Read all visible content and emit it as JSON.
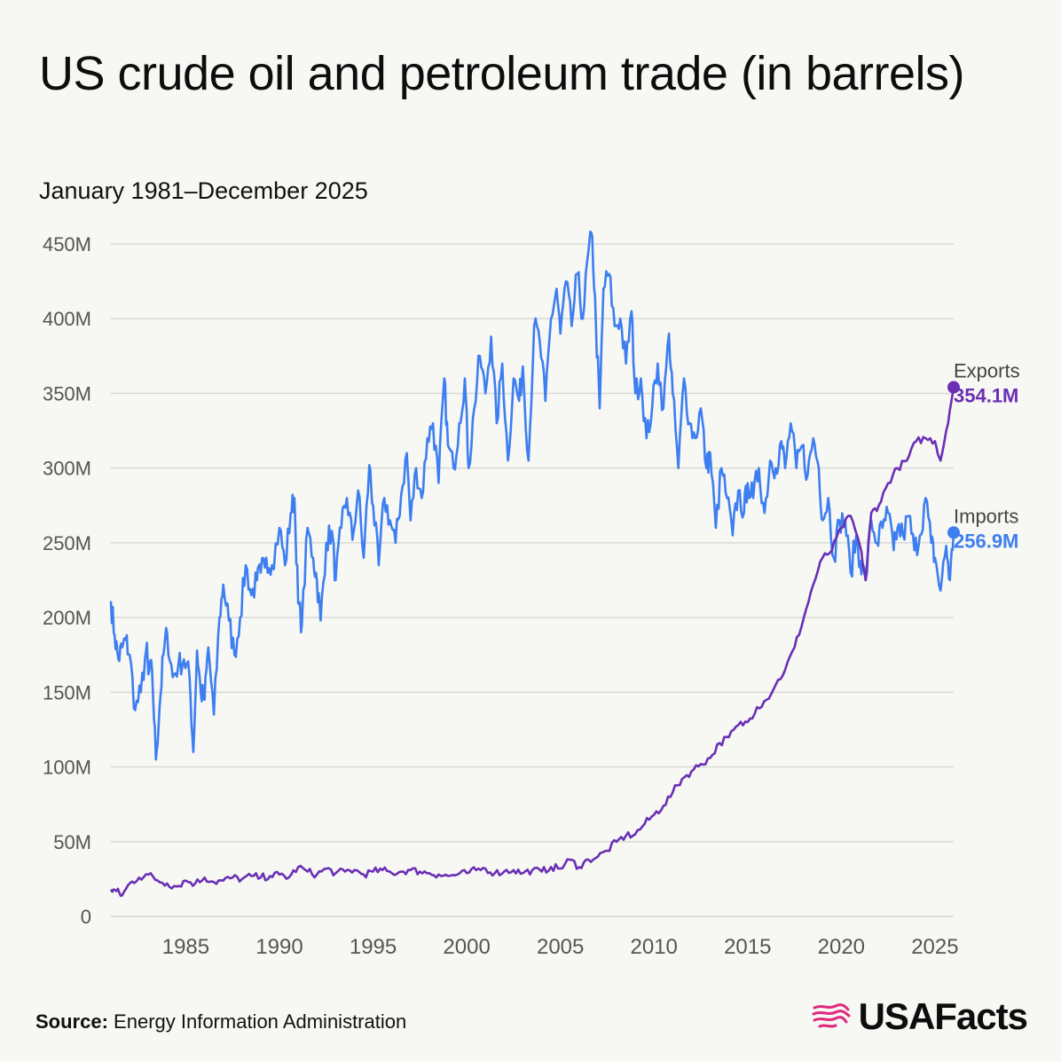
{
  "title": "US crude oil and petroleum trade (in barrels)",
  "subtitle": "January 1981–December 2025",
  "source": {
    "label": "Source:",
    "text": "Energy Information Administration"
  },
  "brand": {
    "name": "USAFacts",
    "logo_icon": "usa-flag-map-icon",
    "logo_color": "#e0287d"
  },
  "chart_data": {
    "type": "line",
    "x_unit": "year",
    "xlim": [
      1981,
      2026
    ],
    "ylim": [
      0,
      450
    ],
    "y_unit": "million barrels",
    "x_ticks": [
      1985,
      1990,
      1995,
      2000,
      2005,
      2010,
      2015,
      2020,
      2025
    ],
    "x_tick_labels": [
      "1985",
      "1990",
      "1995",
      "2000",
      "2005",
      "2010",
      "2015",
      "2020",
      "2025"
    ],
    "y_ticks": [
      0,
      50,
      100,
      150,
      200,
      250,
      300,
      350,
      400,
      450
    ],
    "y_tick_labels": [
      "0",
      "50M",
      "100M",
      "150M",
      "200M",
      "250M",
      "300M",
      "350M",
      "400M",
      "450M"
    ],
    "grid": "horizontal",
    "series": [
      {
        "name": "Imports",
        "end_label": "256.9M",
        "color": "#3d7ef0",
        "points": [
          [
            1981.0,
            211
          ],
          [
            1981.2,
            188
          ],
          [
            1981.4,
            172
          ],
          [
            1981.6,
            180
          ],
          [
            1981.8,
            185
          ],
          [
            1982.0,
            175
          ],
          [
            1982.3,
            138
          ],
          [
            1982.6,
            150
          ],
          [
            1982.9,
            180
          ],
          [
            1983.0,
            162
          ],
          [
            1983.2,
            165
          ],
          [
            1983.4,
            105
          ],
          [
            1983.6,
            140
          ],
          [
            1983.8,
            175
          ],
          [
            1984.0,
            190
          ],
          [
            1984.3,
            160
          ],
          [
            1984.6,
            168
          ],
          [
            1984.9,
            172
          ],
          [
            1985.2,
            160
          ],
          [
            1985.4,
            110
          ],
          [
            1985.6,
            178
          ],
          [
            1985.8,
            150
          ],
          [
            1986.0,
            145
          ],
          [
            1986.2,
            180
          ],
          [
            1986.5,
            135
          ],
          [
            1986.8,
            200
          ],
          [
            1987.0,
            222
          ],
          [
            1987.3,
            198
          ],
          [
            1987.6,
            175
          ],
          [
            1987.9,
            200
          ],
          [
            1988.2,
            235
          ],
          [
            1988.5,
            215
          ],
          [
            1988.8,
            225
          ],
          [
            1989.0,
            230
          ],
          [
            1989.3,
            240
          ],
          [
            1989.6,
            235
          ],
          [
            1990.0,
            260
          ],
          [
            1990.3,
            235
          ],
          [
            1990.6,
            270
          ],
          [
            1990.8,
            280
          ],
          [
            1991.0,
            210
          ],
          [
            1991.2,
            195
          ],
          [
            1991.5,
            260
          ],
          [
            1991.8,
            240
          ],
          [
            1992.0,
            225
          ],
          [
            1992.2,
            198
          ],
          [
            1992.5,
            250
          ],
          [
            1992.8,
            258
          ],
          [
            1993.0,
            225
          ],
          [
            1993.3,
            260
          ],
          [
            1993.6,
            280
          ],
          [
            1993.9,
            252
          ],
          [
            1994.2,
            285
          ],
          [
            1994.5,
            240
          ],
          [
            1994.8,
            302
          ],
          [
            1995.0,
            275
          ],
          [
            1995.3,
            235
          ],
          [
            1995.6,
            280
          ],
          [
            1995.9,
            265
          ],
          [
            1996.2,
            250
          ],
          [
            1996.5,
            282
          ],
          [
            1996.8,
            310
          ],
          [
            1997.0,
            265
          ],
          [
            1997.3,
            300
          ],
          [
            1997.6,
            280
          ],
          [
            1997.9,
            320
          ],
          [
            1998.2,
            330
          ],
          [
            1998.5,
            290
          ],
          [
            1998.8,
            360
          ],
          [
            1999.0,
            315
          ],
          [
            1999.3,
            300
          ],
          [
            1999.6,
            330
          ],
          [
            1999.9,
            360
          ],
          [
            2000.1,
            300
          ],
          [
            2000.4,
            340
          ],
          [
            2000.7,
            375
          ],
          [
            2001.0,
            350
          ],
          [
            2001.3,
            388
          ],
          [
            2001.6,
            330
          ],
          [
            2001.9,
            370
          ],
          [
            2002.2,
            305
          ],
          [
            2002.5,
            360
          ],
          [
            2002.8,
            345
          ],
          [
            2003.0,
            368
          ],
          [
            2003.3,
            305
          ],
          [
            2003.6,
            395
          ],
          [
            2003.9,
            385
          ],
          [
            2004.2,
            345
          ],
          [
            2004.5,
            400
          ],
          [
            2004.8,
            420
          ],
          [
            2005.0,
            390
          ],
          [
            2005.3,
            425
          ],
          [
            2005.6,
            395
          ],
          [
            2005.9,
            430
          ],
          [
            2006.2,
            400
          ],
          [
            2006.5,
            445
          ],
          [
            2006.7,
            455
          ],
          [
            2006.9,
            395
          ],
          [
            2007.1,
            340
          ],
          [
            2007.3,
            420
          ],
          [
            2007.6,
            430
          ],
          [
            2007.9,
            395
          ],
          [
            2008.2,
            400
          ],
          [
            2008.5,
            370
          ],
          [
            2008.8,
            405
          ],
          [
            2009.0,
            350
          ],
          [
            2009.3,
            360
          ],
          [
            2009.6,
            320
          ],
          [
            2009.9,
            340
          ],
          [
            2010.2,
            370
          ],
          [
            2010.5,
            340
          ],
          [
            2010.8,
            390
          ],
          [
            2011.0,
            350
          ],
          [
            2011.3,
            300
          ],
          [
            2011.6,
            360
          ],
          [
            2011.9,
            330
          ],
          [
            2012.2,
            320
          ],
          [
            2012.5,
            340
          ],
          [
            2012.8,
            300
          ],
          [
            2013.0,
            310
          ],
          [
            2013.3,
            260
          ],
          [
            2013.6,
            300
          ],
          [
            2013.9,
            280
          ],
          [
            2014.2,
            255
          ],
          [
            2014.5,
            285
          ],
          [
            2014.8,
            270
          ],
          [
            2015.0,
            290
          ],
          [
            2015.3,
            280
          ],
          [
            2015.6,
            300
          ],
          [
            2015.9,
            270
          ],
          [
            2016.2,
            305
          ],
          [
            2016.5,
            300
          ],
          [
            2016.8,
            318
          ],
          [
            2017.0,
            300
          ],
          [
            2017.3,
            330
          ],
          [
            2017.6,
            300
          ],
          [
            2017.9,
            315
          ],
          [
            2018.2,
            295
          ],
          [
            2018.5,
            320
          ],
          [
            2018.8,
            300
          ],
          [
            2019.0,
            265
          ],
          [
            2019.3,
            280
          ],
          [
            2019.6,
            240
          ],
          [
            2019.9,
            265
          ],
          [
            2020.2,
            265
          ],
          [
            2020.5,
            230
          ],
          [
            2020.8,
            255
          ],
          [
            2021.0,
            238
          ],
          [
            2021.3,
            225
          ],
          [
            2021.6,
            265
          ],
          [
            2021.9,
            250
          ],
          [
            2022.2,
            260
          ],
          [
            2022.5,
            270
          ],
          [
            2022.8,
            245
          ],
          [
            2023.0,
            260
          ],
          [
            2023.3,
            255
          ],
          [
            2023.6,
            268
          ],
          [
            2023.9,
            245
          ],
          [
            2024.2,
            255
          ],
          [
            2024.5,
            280
          ],
          [
            2024.8,
            250
          ],
          [
            2025.0,
            240
          ],
          [
            2025.3,
            218
          ],
          [
            2025.6,
            248
          ],
          [
            2025.8,
            225
          ],
          [
            2026.0,
            256.9
          ]
        ]
      },
      {
        "name": "Exports",
        "end_label": "354.1M",
        "color": "#6a2fb5",
        "points": [
          [
            1981.0,
            18
          ],
          [
            1981.3,
            17
          ],
          [
            1981.6,
            14
          ],
          [
            1982.0,
            22
          ],
          [
            1982.5,
            26
          ],
          [
            1983.0,
            28
          ],
          [
            1983.5,
            24
          ],
          [
            1984.0,
            22
          ],
          [
            1984.5,
            20
          ],
          [
            1985.0,
            24
          ],
          [
            1985.5,
            22
          ],
          [
            1986.0,
            26
          ],
          [
            1986.5,
            23
          ],
          [
            1987.0,
            24
          ],
          [
            1987.5,
            26
          ],
          [
            1988.0,
            25
          ],
          [
            1988.5,
            27
          ],
          [
            1989.0,
            26
          ],
          [
            1989.5,
            27
          ],
          [
            1990.0,
            28
          ],
          [
            1990.5,
            26
          ],
          [
            1991.0,
            33
          ],
          [
            1991.5,
            30
          ],
          [
            1992.0,
            28
          ],
          [
            1992.5,
            32
          ],
          [
            1993.0,
            29
          ],
          [
            1993.5,
            30
          ],
          [
            1994.0,
            31
          ],
          [
            1994.5,
            28
          ],
          [
            1995.0,
            30
          ],
          [
            1995.5,
            31
          ],
          [
            1996.0,
            29
          ],
          [
            1996.5,
            30
          ],
          [
            1997.0,
            31
          ],
          [
            1997.5,
            30
          ],
          [
            1998.0,
            29
          ],
          [
            1998.5,
            28
          ],
          [
            1999.0,
            27
          ],
          [
            1999.5,
            28
          ],
          [
            2000.0,
            29
          ],
          [
            2000.5,
            31
          ],
          [
            2001.0,
            32
          ],
          [
            2001.5,
            29
          ],
          [
            2002.0,
            30
          ],
          [
            2002.5,
            31
          ],
          [
            2003.0,
            29
          ],
          [
            2003.5,
            31
          ],
          [
            2004.0,
            30
          ],
          [
            2004.5,
            33
          ],
          [
            2005.0,
            32
          ],
          [
            2005.5,
            38
          ],
          [
            2006.0,
            33
          ],
          [
            2006.5,
            38
          ],
          [
            2007.0,
            40
          ],
          [
            2007.5,
            44
          ],
          [
            2008.0,
            50
          ],
          [
            2008.5,
            54
          ],
          [
            2009.0,
            55
          ],
          [
            2009.5,
            62
          ],
          [
            2010.0,
            68
          ],
          [
            2010.5,
            74
          ],
          [
            2011.0,
            83
          ],
          [
            2011.5,
            92
          ],
          [
            2012.0,
            97
          ],
          [
            2012.5,
            102
          ],
          [
            2013.0,
            106
          ],
          [
            2013.5,
            116
          ],
          [
            2014.0,
            120
          ],
          [
            2014.5,
            128
          ],
          [
            2015.0,
            130
          ],
          [
            2015.5,
            140
          ],
          [
            2016.0,
            145
          ],
          [
            2016.5,
            155
          ],
          [
            2017.0,
            165
          ],
          [
            2017.5,
            180
          ],
          [
            2018.0,
            200
          ],
          [
            2018.5,
            222
          ],
          [
            2019.0,
            240
          ],
          [
            2019.5,
            245
          ],
          [
            2020.0,
            260
          ],
          [
            2020.5,
            268
          ],
          [
            2021.0,
            248
          ],
          [
            2021.3,
            225
          ],
          [
            2021.6,
            270
          ],
          [
            2022.0,
            275
          ],
          [
            2022.5,
            290
          ],
          [
            2023.0,
            300
          ],
          [
            2023.5,
            305
          ],
          [
            2024.0,
            318
          ],
          [
            2024.5,
            320
          ],
          [
            2025.0,
            318
          ],
          [
            2025.3,
            305
          ],
          [
            2025.6,
            325
          ],
          [
            2026.0,
            354.1
          ]
        ]
      }
    ]
  }
}
